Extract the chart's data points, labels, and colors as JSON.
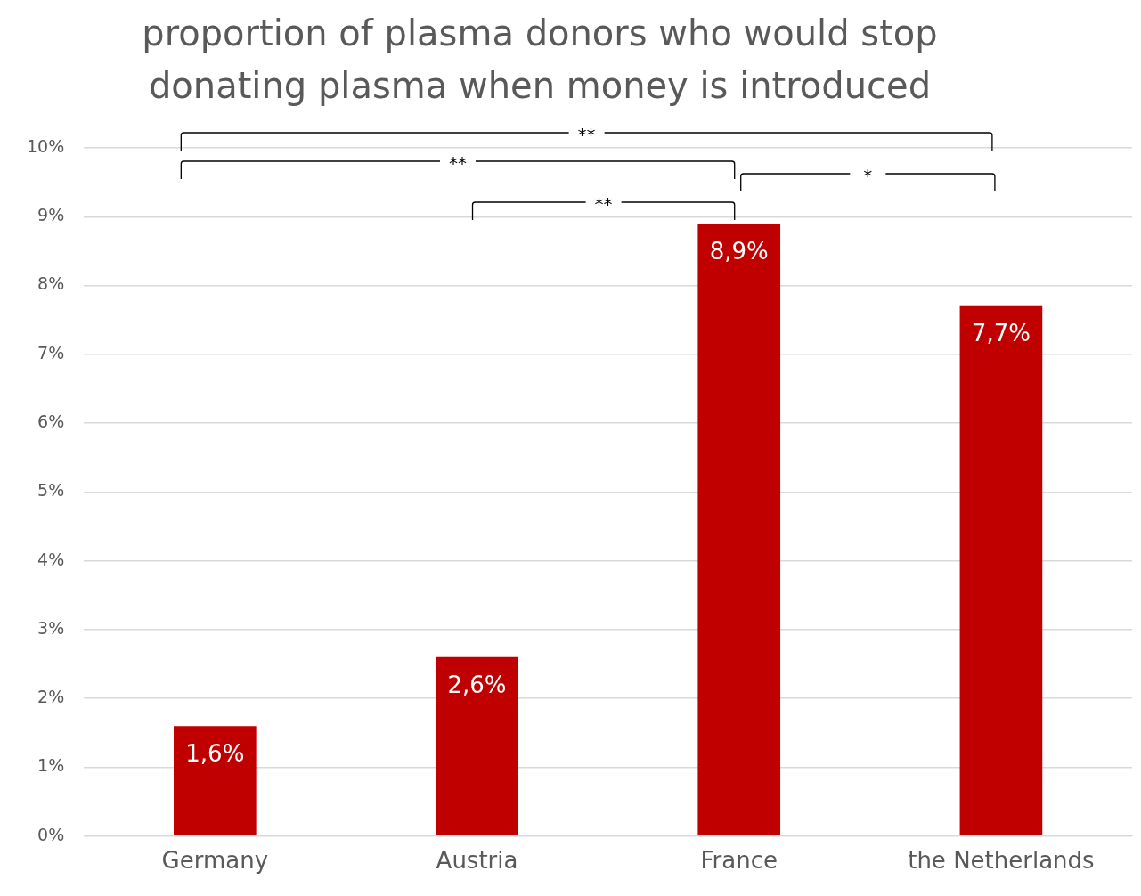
{
  "chart_data": {
    "type": "bar",
    "title": "proportion of plasma donors who would stop donating plasma when money is introduced",
    "categories": [
      "Germany",
      "Austria",
      "France",
      "the Netherlands"
    ],
    "values": [
      1.6,
      2.6,
      8.9,
      7.7
    ],
    "color": "#c00000",
    "value_labels": [
      "1,6%",
      "2,6%",
      "8,9%",
      "7,7%"
    ],
    "ylim": [
      0,
      10
    ],
    "yticks": [
      {
        "value": 0,
        "label": "0%"
      },
      {
        "value": 1,
        "label": "1%"
      },
      {
        "value": 2,
        "label": "2%"
      },
      {
        "value": 3,
        "label": "3%"
      },
      {
        "value": 4,
        "label": "4%"
      },
      {
        "value": 5,
        "label": "5%"
      },
      {
        "value": 6,
        "label": "6%"
      },
      {
        "value": 7,
        "label": "7%"
      },
      {
        "value": 8,
        "label": "8%"
      },
      {
        "value": 9,
        "label": "9%"
      },
      {
        "value": 10,
        "label": "10%"
      }
    ],
    "grid": "y",
    "legend": false,
    "annotations": [
      "**",
      "**",
      "*",
      "**"
    ]
  }
}
